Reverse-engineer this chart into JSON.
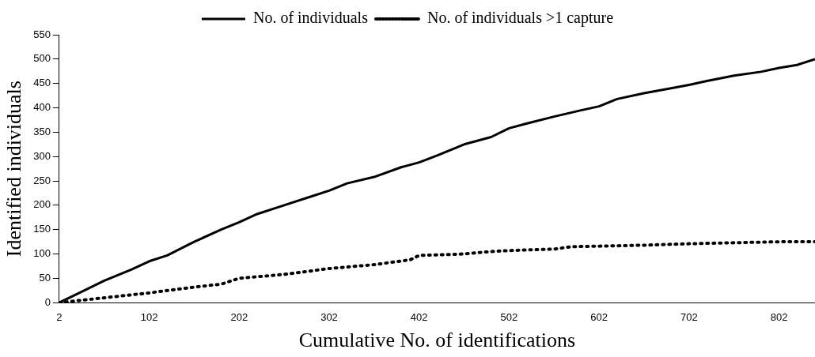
{
  "chart_data": {
    "type": "line",
    "xlabel": "Cumulative No. of identifications",
    "ylabel": "Identified individuals",
    "xlim": [
      2,
      842
    ],
    "xticks": [
      2,
      102,
      202,
      302,
      402,
      502,
      602,
      702,
      802
    ],
    "ylim": [
      0,
      550
    ],
    "yticks": [
      0,
      50,
      100,
      150,
      200,
      250,
      300,
      350,
      400,
      450,
      500,
      550
    ],
    "grid": false,
    "legend": "top",
    "marker": "none",
    "series": [
      {
        "name": "No. of individuals",
        "color": "#000000",
        "line_style": "solid",
        "x": [
          2,
          22,
          52,
          82,
          102,
          122,
          152,
          182,
          202,
          222,
          252,
          282,
          302,
          322,
          352,
          382,
          402,
          422,
          452,
          482,
          502,
          522,
          552,
          582,
          602,
          622,
          652,
          682,
          702,
          722,
          752,
          782,
          802,
          822,
          842
        ],
        "values": [
          0,
          18,
          45,
          68,
          85,
          97,
          125,
          150,
          165,
          182,
          200,
          218,
          230,
          245,
          258,
          278,
          288,
          302,
          325,
          340,
          358,
          368,
          382,
          395,
          403,
          418,
          430,
          440,
          447,
          455,
          466,
          474,
          482,
          488,
          500
        ]
      },
      {
        "name": "No. of individuals >1 capture",
        "color": "#000000",
        "line_style": "dotted",
        "x": [
          2,
          52,
          102,
          152,
          182,
          202,
          252,
          302,
          352,
          392,
          402,
          452,
          482,
          502,
          552,
          572,
          602,
          652,
          702,
          752,
          802,
          842
        ],
        "values": [
          0,
          10,
          20,
          32,
          38,
          50,
          58,
          70,
          78,
          88,
          97,
          100,
          105,
          107,
          110,
          115,
          116,
          118,
          121,
          123,
          125,
          125
        ]
      }
    ]
  }
}
